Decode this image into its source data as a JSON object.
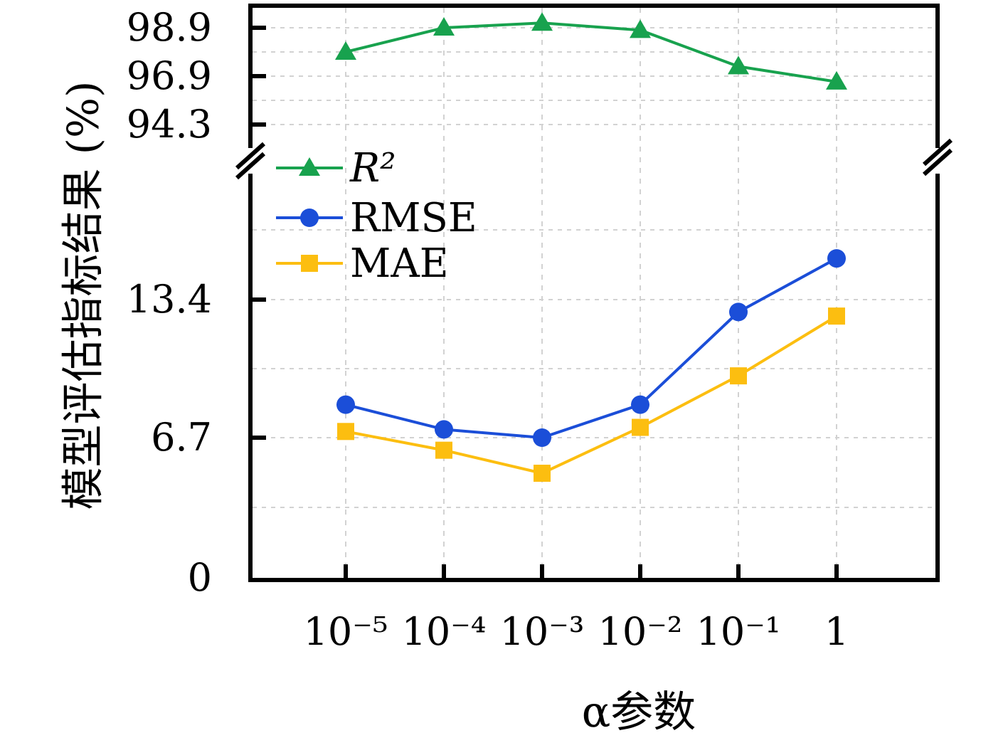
{
  "chart_data": {
    "type": "line",
    "title": "",
    "x_axis": {
      "label": "α参数",
      "tick_labels": [
        "10⁻⁵",
        "10⁻⁴",
        "10⁻³",
        "10⁻²",
        "10⁻¹",
        "1"
      ],
      "scale": "log-categorical"
    },
    "y_axis": {
      "label": "模型评估指标结果 (%)",
      "broken": true,
      "upper_segment": {
        "tick_labels": [
          "98.9",
          "96.9",
          "94.3"
        ]
      },
      "lower_segment": {
        "tick_labels": [
          "13.4",
          "6.7",
          "0"
        ]
      }
    },
    "grid": "dashed",
    "legend": {
      "position": "upper-left-below-break",
      "entries": [
        "R²",
        "RMSE",
        "MAE"
      ]
    },
    "series": [
      {
        "name": "R²",
        "marker": "triangle",
        "color": "#18a24e",
        "axis": "upper",
        "label_style": "italic",
        "values": [
          97.9,
          98.9,
          99.1,
          98.8,
          97.3,
          96.6
        ]
      },
      {
        "name": "RMSE",
        "marker": "circle",
        "color": "#1b4ed8",
        "axis": "lower",
        "label_style": "normal",
        "values": [
          8.3,
          7.1,
          6.7,
          8.3,
          12.8,
          15.4
        ]
      },
      {
        "name": "MAE",
        "marker": "square",
        "color": "#fcbe10",
        "axis": "lower",
        "label_style": "normal",
        "values": [
          7.0,
          6.1,
          5.0,
          7.2,
          9.7,
          12.6
        ]
      }
    ],
    "colors": {
      "axis": "#000000",
      "grid": "#d2d2d2",
      "background": "#ffffff"
    }
  }
}
